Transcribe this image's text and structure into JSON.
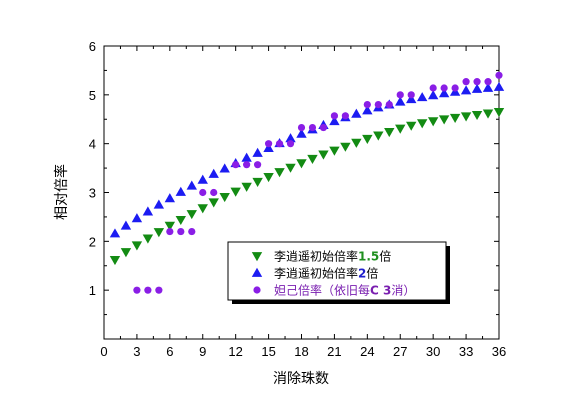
{
  "chart_data": {
    "type": "scatter",
    "xlabel": "消除珠数",
    "ylabel": "相对倍率",
    "xlim": [
      0,
      36
    ],
    "ylim": [
      0,
      6
    ],
    "xticks": [
      "0",
      "3",
      "6",
      "9",
      "12",
      "15",
      "18",
      "21",
      "24",
      "27",
      "30",
      "33",
      "36"
    ],
    "yticks": [
      "1",
      "2",
      "3",
      "4",
      "5",
      "6"
    ],
    "legend_position": "center-right",
    "series": [
      {
        "name": "李逍遥初始倍率1.5倍",
        "name_prefix": "李逍遥初始倍率",
        "name_highlight": "1.5",
        "name_suffix": "倍",
        "highlight_color": "#1e8f1e",
        "marker": "triangle-down",
        "color": "#138b13",
        "x": [
          1,
          2,
          3,
          4,
          5,
          6,
          7,
          8,
          9,
          10,
          11,
          12,
          13,
          14,
          15,
          16,
          17,
          18,
          19,
          20,
          21,
          22,
          23,
          24,
          25,
          26,
          27,
          28,
          29,
          30,
          31,
          32,
          33,
          34,
          35,
          36
        ],
        "y": [
          1.62,
          1.78,
          1.92,
          2.06,
          2.19,
          2.32,
          2.44,
          2.56,
          2.68,
          2.8,
          2.91,
          3.02,
          3.12,
          3.22,
          3.32,
          3.42,
          3.51,
          3.6,
          3.69,
          3.78,
          3.86,
          3.94,
          4.02,
          4.1,
          4.17,
          4.24,
          4.31,
          4.37,
          4.42,
          4.46,
          4.5,
          4.53,
          4.56,
          4.59,
          4.62,
          4.65
        ]
      },
      {
        "name": "李逍遥初始倍率2倍",
        "name_prefix": "李逍遥初始倍率",
        "name_highlight": "2",
        "name_suffix": "倍",
        "highlight_color": "#1f1fcc",
        "marker": "triangle-up",
        "color": "#1c1cf2",
        "x": [
          1,
          2,
          3,
          4,
          5,
          6,
          7,
          8,
          9,
          10,
          11,
          12,
          13,
          14,
          15,
          16,
          17,
          18,
          19,
          20,
          21,
          22,
          23,
          24,
          25,
          26,
          27,
          28,
          29,
          30,
          31,
          32,
          33,
          34,
          35,
          36
        ],
        "y": [
          2.16,
          2.32,
          2.47,
          2.61,
          2.75,
          2.88,
          3.01,
          3.14,
          3.26,
          3.38,
          3.49,
          3.6,
          3.71,
          3.81,
          3.91,
          4.01,
          4.11,
          4.2,
          4.29,
          4.38,
          4.46,
          4.54,
          4.61,
          4.68,
          4.74,
          4.8,
          4.86,
          4.91,
          4.95,
          4.99,
          5.03,
          5.06,
          5.09,
          5.12,
          5.14,
          5.16
        ]
      },
      {
        "name": "妲己倍率（依旧每C 3消）",
        "name_prefix": "妲己倍率（依旧每",
        "name_highlight": "C 3",
        "name_suffix": "消）",
        "highlight_color": "#7a1fb0",
        "text_color": "#7a1fb0",
        "marker": "circle",
        "color": "#8a1ee6",
        "x": [
          3,
          4,
          5,
          6,
          7,
          8,
          9,
          10,
          12,
          13,
          14,
          15,
          16,
          17,
          18,
          19,
          20,
          21,
          22,
          24,
          25,
          26,
          27,
          28,
          30,
          31,
          32,
          33,
          34,
          35,
          36
        ],
        "y": [
          1,
          1,
          1,
          2.2,
          2.2,
          2.2,
          3.0,
          3.0,
          3.57,
          3.57,
          3.57,
          4.0,
          4.0,
          4.0,
          4.33,
          4.33,
          4.33,
          4.57,
          4.57,
          4.8,
          4.8,
          4.8,
          5.0,
          5.0,
          5.14,
          5.14,
          5.14,
          5.27,
          5.27,
          5.27,
          5.4
        ]
      }
    ]
  }
}
